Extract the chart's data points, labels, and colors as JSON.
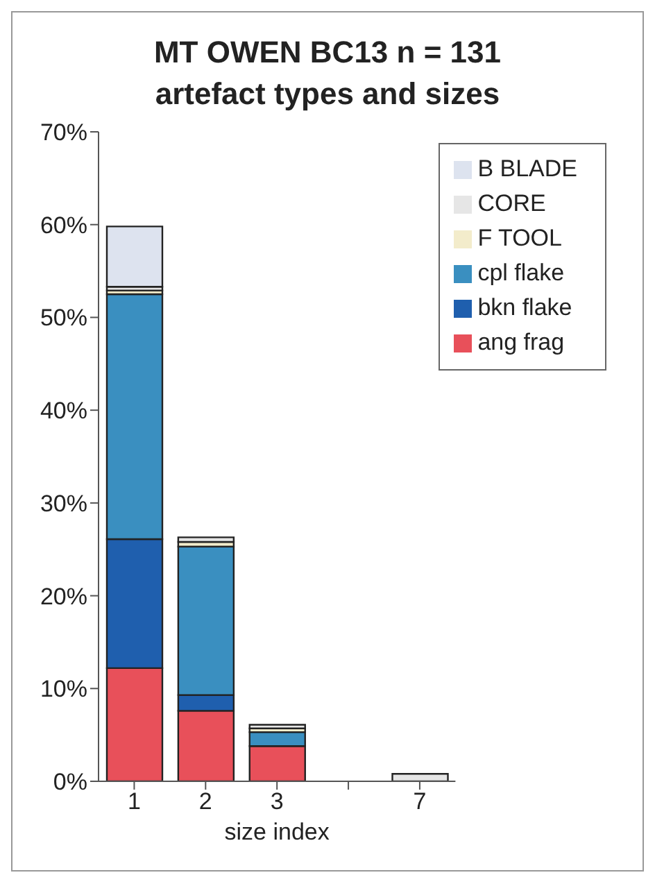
{
  "chart_data": {
    "type": "bar",
    "title": "MT OWEN BC13 n = 131\nartefact types and sizes",
    "xlabel": "size index",
    "categories": [
      "1",
      "2",
      "3",
      null,
      "7"
    ],
    "stacked": true,
    "series": [
      {
        "name": "ang frag",
        "color": "#e8505a",
        "values": [
          12.2,
          7.6,
          3.8,
          null,
          null
        ]
      },
      {
        "name": "bkn flake",
        "color": "#1f5fae",
        "values": [
          13.9,
          1.7,
          null,
          null,
          null
        ]
      },
      {
        "name": "cpl flake",
        "color": "#3a8fc0",
        "values": [
          26.4,
          16.0,
          1.5,
          null,
          null
        ]
      },
      {
        "name": "F TOOL",
        "color": "#f3eccb",
        "values": [
          0.4,
          0.5,
          0.4,
          null,
          null
        ]
      },
      {
        "name": "CORE",
        "color": "#e6e6e6",
        "values": [
          0.4,
          0.5,
          0.4,
          null,
          0.8
        ]
      },
      {
        "name": "B BLADE",
        "color": "#dde3ef",
        "values": [
          6.5,
          null,
          null,
          null,
          null
        ]
      }
    ],
    "ylim": [
      0,
      70
    ],
    "yticks": [
      {
        "value": 0,
        "label": "0%"
      },
      {
        "value": 10,
        "label": "10%"
      },
      {
        "value": 20,
        "label": "20%"
      },
      {
        "value": 30,
        "label": "30%"
      },
      {
        "value": 40,
        "label": "40%"
      },
      {
        "value": 50,
        "label": "50%"
      },
      {
        "value": 60,
        "label": "60%"
      },
      {
        "value": 70,
        "label": "70%"
      }
    ],
    "grid": false,
    "legend": "top right"
  }
}
